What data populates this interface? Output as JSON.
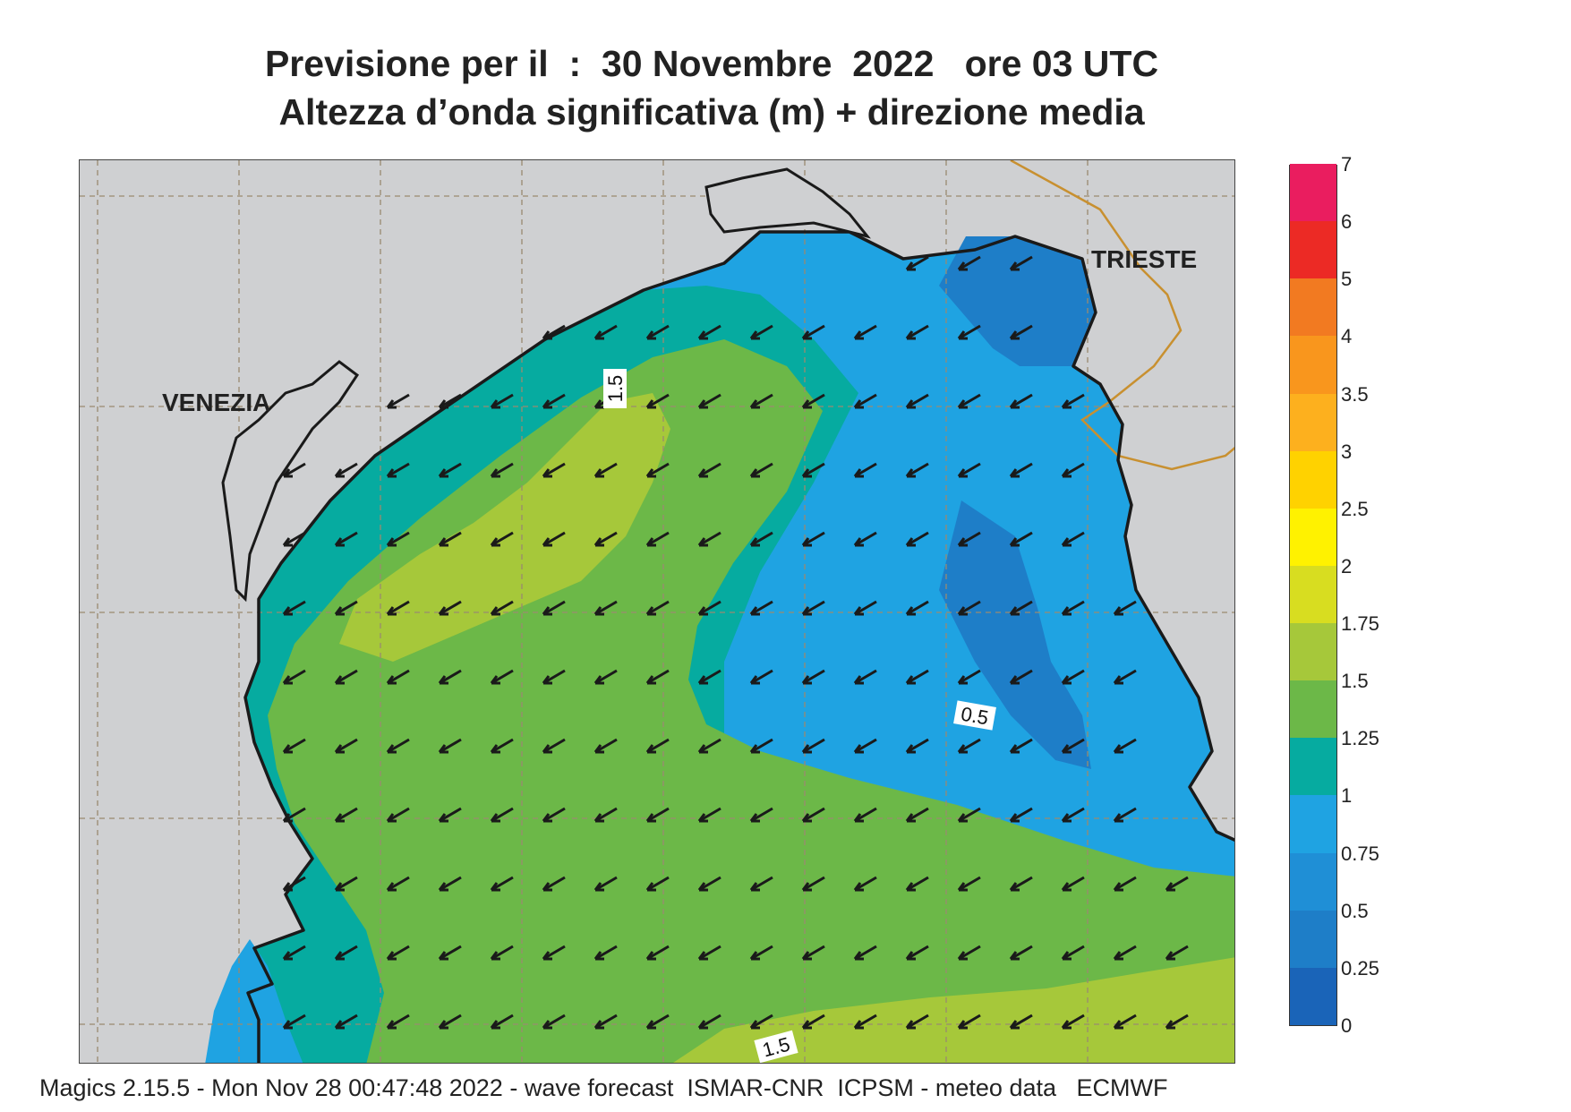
{
  "title": {
    "line1": "Previsione per il  :  30 Novembre  2022   ore 03 UTC",
    "line2": "Altezza d’onda significativa (m) + direzione media"
  },
  "map": {
    "labels": {
      "venezia": "VENEZIA",
      "trieste": "TRIESTE"
    },
    "contour_labels": [
      "1.5",
      "0.5",
      "1.5"
    ],
    "colors": {
      "land": "#cfd0d2",
      "coast": "#1a1a1a",
      "border": "#c89030",
      "grid": "#9a8a70",
      "arrow": "#1a1a1a"
    },
    "arrow_direction": "toward south-west"
  },
  "colorbar": {
    "levels": [
      "0",
      "0.25",
      "0.5",
      "0.75",
      "1",
      "1.25",
      "1.5",
      "1.75",
      "2",
      "2.5",
      "3",
      "3.5",
      "4",
      "5",
      "6",
      "7"
    ],
    "colors": [
      "#1a64b8",
      "#1e7ec8",
      "#1f8fd6",
      "#1fa3e2",
      "#06aba0",
      "#6cb848",
      "#a6c83a",
      "#d8dd20",
      "#fff200",
      "#ffd200",
      "#fdb01e",
      "#f9961d",
      "#f27a21",
      "#ec2a25",
      "#ea1d5f"
    ]
  },
  "footer": "Magics 2.15.5 - Mon Nov 28 00:47:48 2022 - wave forecast  ISMAR-CNR  ICPSM - meteo data   ECMWF"
}
